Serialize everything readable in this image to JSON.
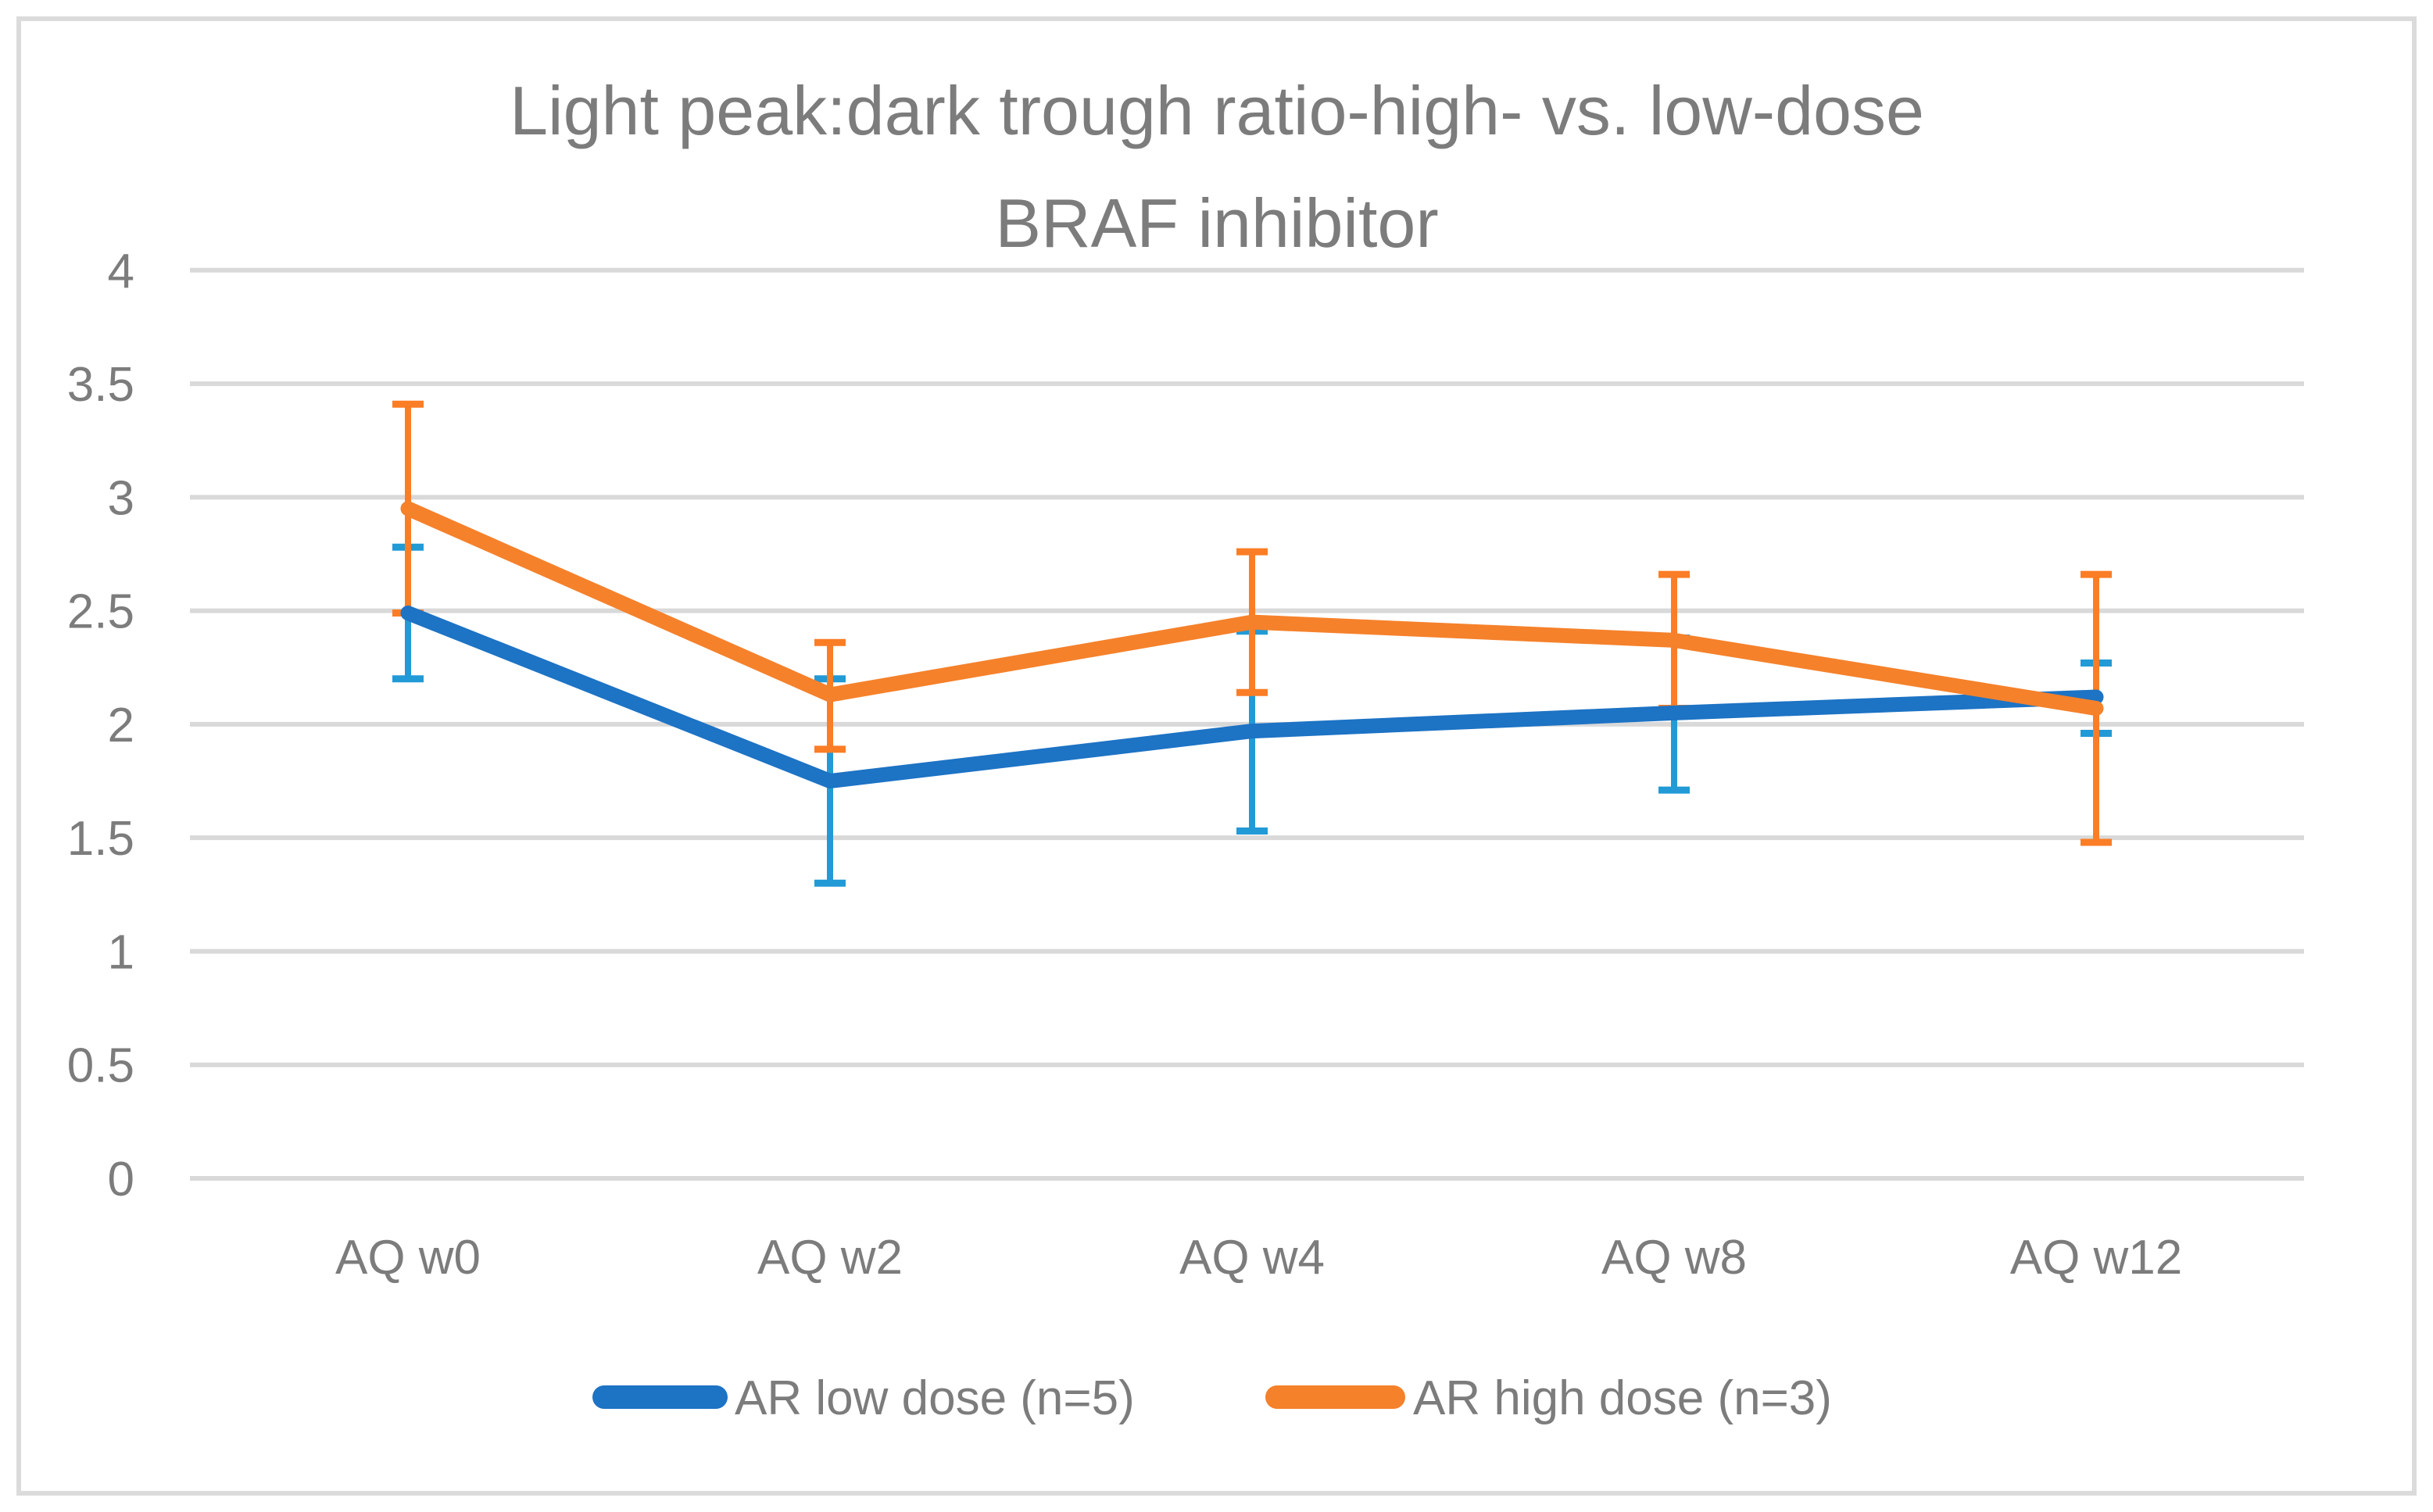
{
  "chart_data": {
    "type": "line",
    "title": "Light peak:dark trough ratio-high- vs. low-dose BRAF inhibitor",
    "title_lines": [
      "Light peak:dark trough ratio-high- vs. low-dose",
      "BRAF inhibitor"
    ],
    "categories": [
      "AQ w0",
      "AQ w2",
      "AQ w4",
      "AQ w8",
      "AQ w12"
    ],
    "y_ticks": [
      0,
      0.5,
      1,
      1.5,
      2,
      2.5,
      3,
      3.5,
      4
    ],
    "y_tick_labels": [
      "0",
      "0.5",
      "1",
      "1.5",
      "2",
      "2.5",
      "3",
      "3.5",
      "4"
    ],
    "ylim": [
      0,
      4
    ],
    "xlabel": "",
    "ylabel": "",
    "grid": true,
    "legend_position": "bottom",
    "series": [
      {
        "name": "AR low dose (n=5)",
        "color": "#1D73C4",
        "error_color": "#229AD6",
        "values": [
          2.49,
          1.75,
          1.97,
          2.05,
          2.12
        ],
        "error_upper": [
          2.78,
          2.2,
          2.41,
          2.38,
          2.27
        ],
        "error_lower": [
          2.2,
          1.3,
          1.53,
          1.71,
          1.96
        ]
      },
      {
        "name": "AR high dose (n=3)",
        "color": "#F5812B",
        "error_color": "#FB7D26",
        "values": [
          2.95,
          2.13,
          2.45,
          2.37,
          2.07
        ],
        "error_upper": [
          3.41,
          2.36,
          2.76,
          2.66,
          2.66
        ],
        "error_lower": [
          2.49,
          1.89,
          2.14,
          2.07,
          1.48
        ]
      }
    ],
    "colors": {
      "gridline": "#D9D9D9",
      "frame_border": "#DBDBDB",
      "text": "#7C7C7C",
      "background": "#FFFFFF"
    }
  }
}
